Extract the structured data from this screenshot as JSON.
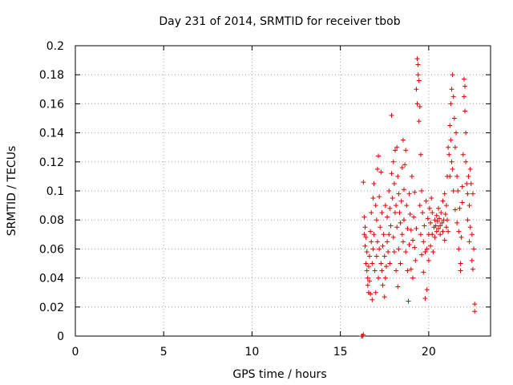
{
  "chart_data": {
    "type": "scatter",
    "title": "Day 231 of 2014, SRMTID for receiver tbob",
    "xlabel": "GPS time / hours",
    "ylabel": "SRMTID / TECUs",
    "xlim": [
      0,
      23.5
    ],
    "ylim": [
      0,
      0.2
    ],
    "xticks": [
      0,
      5,
      10,
      15,
      20
    ],
    "yticks": [
      0,
      0.02,
      0.04,
      0.06,
      0.08,
      0.1,
      0.12,
      0.14,
      0.16,
      0.18,
      0.2
    ],
    "xtick_labels": [
      "0",
      "5",
      "10",
      "15",
      "20"
    ],
    "ytick_labels": [
      "0",
      "0.02",
      "0.04",
      "0.06",
      "0.08",
      "0.1",
      "0.12",
      "0.14",
      "0.16",
      "0.18",
      "0.2"
    ],
    "grid": true,
    "marker": "+",
    "series": [
      {
        "name": "SRMTID",
        "color": "#e00000",
        "points": [
          [
            16.2,
            0.0
          ],
          [
            16.25,
            0.0
          ],
          [
            16.3,
            0.001
          ],
          [
            16.3,
            0.106
          ],
          [
            16.35,
            0.082
          ],
          [
            16.35,
            0.07
          ],
          [
            16.4,
            0.075
          ],
          [
            16.4,
            0.062
          ],
          [
            16.45,
            0.068
          ],
          [
            16.45,
            0.05
          ],
          [
            16.5,
            0.058
          ],
          [
            16.5,
            0.045
          ],
          [
            16.55,
            0.04
          ],
          [
            16.55,
            0.035
          ],
          [
            16.6,
            0.03
          ],
          [
            16.6,
            0.048
          ],
          [
            16.65,
            0.038
          ],
          [
            16.65,
            0.055
          ],
          [
            16.7,
            0.029
          ],
          [
            16.7,
            0.072
          ],
          [
            16.75,
            0.085
          ],
          [
            16.75,
            0.065
          ],
          [
            16.8,
            0.025
          ],
          [
            16.8,
            0.05
          ],
          [
            16.85,
            0.095
          ],
          [
            16.85,
            0.06
          ],
          [
            16.9,
            0.105
          ],
          [
            16.9,
            0.07
          ],
          [
            16.95,
            0.045
          ],
          [
            17.0,
            0.09
          ],
          [
            17.0,
            0.03
          ],
          [
            17.05,
            0.08
          ],
          [
            17.05,
            0.055
          ],
          [
            17.1,
            0.115
          ],
          [
            17.1,
            0.065
          ],
          [
            17.15,
            0.124
          ],
          [
            17.15,
            0.04
          ],
          [
            17.2,
            0.096
          ],
          [
            17.2,
            0.06
          ],
          [
            17.25,
            0.075
          ],
          [
            17.3,
            0.113
          ],
          [
            17.3,
            0.05
          ],
          [
            17.35,
            0.085
          ],
          [
            17.35,
            0.045
          ],
          [
            17.4,
            0.062
          ],
          [
            17.4,
            0.035
          ],
          [
            17.45,
            0.07
          ],
          [
            17.5,
            0.055
          ],
          [
            17.5,
            0.027
          ],
          [
            17.55,
            0.09
          ],
          [
            17.55,
            0.04
          ],
          [
            17.6,
            0.048
          ],
          [
            17.65,
            0.065
          ],
          [
            17.65,
            0.082
          ],
          [
            17.7,
            0.058
          ],
          [
            17.75,
            0.1
          ],
          [
            17.75,
            0.07
          ],
          [
            17.8,
            0.088
          ],
          [
            17.8,
            0.05
          ],
          [
            17.85,
            0.076
          ],
          [
            17.9,
            0.152
          ],
          [
            17.9,
            0.112
          ],
          [
            17.95,
            0.095
          ],
          [
            18.0,
            0.12
          ],
          [
            18.0,
            0.068
          ],
          [
            18.05,
            0.105
          ],
          [
            18.05,
            0.058
          ],
          [
            18.1,
            0.128
          ],
          [
            18.1,
            0.085
          ],
          [
            18.15,
            0.09
          ],
          [
            18.15,
            0.045
          ],
          [
            18.2,
            0.13
          ],
          [
            18.2,
            0.075
          ],
          [
            18.25,
            0.11
          ],
          [
            18.25,
            0.034
          ],
          [
            18.3,
            0.098
          ],
          [
            18.3,
            0.06
          ],
          [
            18.35,
            0.085
          ],
          [
            18.4,
            0.078
          ],
          [
            18.4,
            0.05
          ],
          [
            18.45,
            0.093
          ],
          [
            18.5,
            0.07
          ],
          [
            18.5,
            0.116
          ],
          [
            18.55,
            0.135
          ],
          [
            18.55,
            0.065
          ],
          [
            18.6,
            0.101
          ],
          [
            18.6,
            0.08
          ],
          [
            18.65,
            0.118
          ],
          [
            18.7,
            0.128
          ],
          [
            18.7,
            0.058
          ],
          [
            18.75,
            0.09
          ],
          [
            18.8,
            0.045
          ],
          [
            18.8,
            0.074
          ],
          [
            18.85,
            0.024
          ],
          [
            18.9,
            0.098
          ],
          [
            18.9,
            0.063
          ],
          [
            18.95,
            0.084
          ],
          [
            19.0,
            0.073
          ],
          [
            19.0,
            0.046
          ],
          [
            19.05,
            0.11
          ],
          [
            19.1,
            0.066
          ],
          [
            19.1,
            0.04
          ],
          [
            19.15,
            0.082
          ],
          [
            19.2,
            0.061
          ],
          [
            19.2,
            0.099
          ],
          [
            19.25,
            0.052
          ],
          [
            19.3,
            0.074
          ],
          [
            19.3,
            0.17
          ],
          [
            19.35,
            0.191
          ],
          [
            19.35,
            0.16
          ],
          [
            19.4,
            0.18
          ],
          [
            19.4,
            0.187
          ],
          [
            19.45,
            0.176
          ],
          [
            19.45,
            0.148
          ],
          [
            19.5,
            0.158
          ],
          [
            19.5,
            0.09
          ],
          [
            19.55,
            0.125
          ],
          [
            19.55,
            0.07
          ],
          [
            19.6,
            0.1
          ],
          [
            19.6,
            0.056
          ],
          [
            19.65,
            0.085
          ],
          [
            19.7,
            0.065
          ],
          [
            19.7,
            0.044
          ],
          [
            19.75,
            0.076
          ],
          [
            19.8,
            0.058
          ],
          [
            19.8,
            0.026
          ],
          [
            19.85,
            0.093
          ],
          [
            19.9,
            0.06
          ],
          [
            19.9,
            0.032
          ],
          [
            19.95,
            0.081
          ],
          [
            20.0,
            0.052
          ],
          [
            20.0,
            0.07
          ],
          [
            20.05,
            0.088
          ],
          [
            20.1,
            0.062
          ],
          [
            20.1,
            0.078
          ],
          [
            20.15,
            0.095
          ],
          [
            20.2,
            0.07
          ],
          [
            20.2,
            0.085
          ],
          [
            20.25,
            0.058
          ],
          [
            20.3,
            0.075
          ],
          [
            20.35,
            0.08
          ],
          [
            20.35,
            0.068
          ],
          [
            20.4,
            0.076
          ],
          [
            20.45,
            0.083
          ],
          [
            20.45,
            0.072
          ],
          [
            20.5,
            0.079
          ],
          [
            20.55,
            0.074
          ],
          [
            20.55,
            0.088
          ],
          [
            20.6,
            0.081
          ],
          [
            20.65,
            0.07
          ],
          [
            20.65,
            0.076
          ],
          [
            20.7,
            0.085
          ],
          [
            20.75,
            0.078
          ],
          [
            20.8,
            0.093
          ],
          [
            20.8,
            0.072
          ],
          [
            20.85,
            0.08
          ],
          [
            20.9,
            0.098
          ],
          [
            20.9,
            0.066
          ],
          [
            20.95,
            0.084
          ],
          [
            21.0,
            0.09
          ],
          [
            21.0,
            0.075
          ],
          [
            21.05,
            0.11
          ],
          [
            21.05,
            0.08
          ],
          [
            21.1,
            0.13
          ],
          [
            21.1,
            0.072
          ],
          [
            21.15,
            0.125
          ],
          [
            21.2,
            0.11
          ],
          [
            21.2,
            0.145
          ],
          [
            21.25,
            0.16
          ],
          [
            21.25,
            0.135
          ],
          [
            21.3,
            0.17
          ],
          [
            21.3,
            0.12
          ],
          [
            21.35,
            0.18
          ],
          [
            21.35,
            0.115
          ],
          [
            21.4,
            0.165
          ],
          [
            21.4,
            0.1
          ],
          [
            21.45,
            0.15
          ],
          [
            21.5,
            0.13
          ],
          [
            21.5,
            0.087
          ],
          [
            21.55,
            0.14
          ],
          [
            21.6,
            0.11
          ],
          [
            21.6,
            0.078
          ],
          [
            21.65,
            0.1
          ],
          [
            21.7,
            0.072
          ],
          [
            21.7,
            0.06
          ],
          [
            21.75,
            0.088
          ],
          [
            21.8,
            0.05
          ],
          [
            21.8,
            0.045
          ],
          [
            21.85,
            0.068
          ],
          [
            21.9,
            0.092
          ],
          [
            21.9,
            0.103
          ],
          [
            21.95,
            0.125
          ],
          [
            22.0,
            0.177
          ],
          [
            22.0,
            0.165
          ],
          [
            22.05,
            0.172
          ],
          [
            22.05,
            0.155
          ],
          [
            22.1,
            0.14
          ],
          [
            22.1,
            0.12
          ],
          [
            22.15,
            0.105
          ],
          [
            22.2,
            0.098
          ],
          [
            22.2,
            0.08
          ],
          [
            22.25,
            0.11
          ],
          [
            22.3,
            0.09
          ],
          [
            22.3,
            0.065
          ],
          [
            22.35,
            0.115
          ],
          [
            22.35,
            0.075
          ],
          [
            22.4,
            0.105
          ],
          [
            22.45,
            0.052
          ],
          [
            22.45,
            0.07
          ],
          [
            22.5,
            0.098
          ],
          [
            22.5,
            0.046
          ],
          [
            22.55,
            0.06
          ],
          [
            22.6,
            0.022
          ],
          [
            22.6,
            0.017
          ]
        ]
      }
    ]
  }
}
